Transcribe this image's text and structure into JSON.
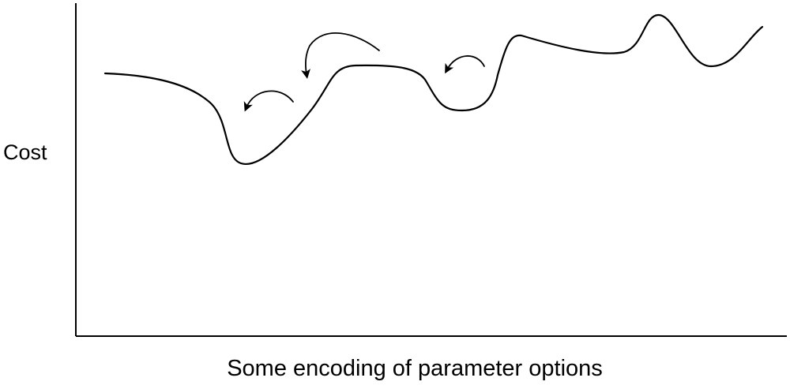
{
  "diagram": {
    "y_axis_label": "Cost",
    "x_axis_label": "Some encoding of parameter options",
    "curve": {
      "name": "cost-landscape",
      "description_shown": ""
    },
    "arrows": [
      {
        "name": "move-arrow-1",
        "direction": "left"
      },
      {
        "name": "move-arrow-2",
        "direction": "left"
      },
      {
        "name": "move-arrow-3",
        "direction": "left"
      }
    ],
    "colors": {
      "stroke": "#000000",
      "background": "#ffffff"
    }
  }
}
